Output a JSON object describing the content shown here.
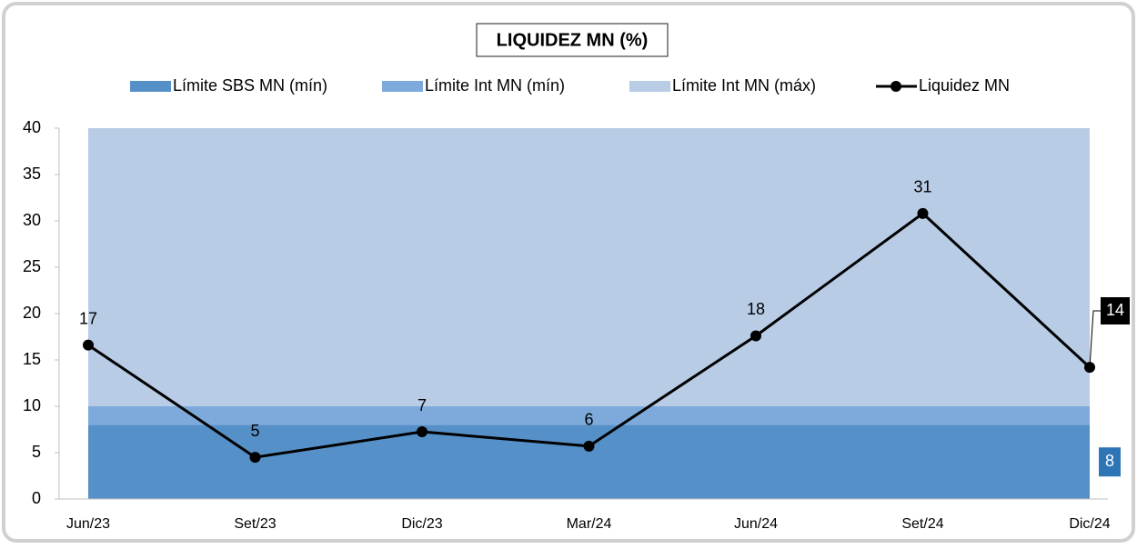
{
  "chart_data": {
    "type": "area_line",
    "title": "LIQUIDEZ MN (%)",
    "categories": [
      "Jun/23",
      "Set/23",
      "Dic/23",
      "Mar/24",
      "Jun/24",
      "Set/24",
      "Dic/24"
    ],
    "series": [
      {
        "name": "Límite SBS MN (mín)",
        "color": "#5590c8",
        "kind": "area",
        "values": [
          8,
          8,
          8,
          8,
          8,
          8,
          8
        ],
        "value_labels": [
          null,
          null,
          null,
          null,
          null,
          null,
          "8"
        ]
      },
      {
        "name": "Límite Int MN (mín)",
        "color": "#7eaadb",
        "kind": "area",
        "values": [
          2,
          2,
          2,
          2,
          2,
          2,
          2
        ]
      },
      {
        "name": "Límite Int MN (máx)",
        "color": "#b8cce6",
        "kind": "area",
        "values": [
          30,
          30,
          30,
          30,
          30,
          30,
          30
        ]
      },
      {
        "name": "Liquidez MN",
        "color": "#000000",
        "kind": "line",
        "values": [
          16.6,
          4.5,
          7.25,
          5.7,
          17.6,
          30.8,
          14.2
        ],
        "value_labels": [
          "17",
          "5",
          "7",
          "6",
          "18",
          "31",
          "14"
        ]
      }
    ],
    "ylim": [
      0,
      40
    ],
    "yticks": [
      0,
      5,
      10,
      15,
      20,
      25,
      30,
      35,
      40
    ],
    "legend": "top"
  }
}
